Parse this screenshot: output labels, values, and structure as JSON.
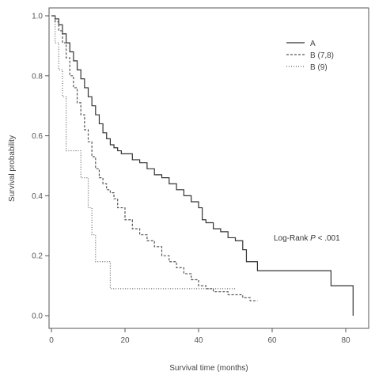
{
  "chart_data": {
    "type": "line",
    "xlabel": "Survival time (months)",
    "ylabel": "Survival probability",
    "xlim": [
      0,
      84
    ],
    "ylim": [
      0,
      1.05
    ],
    "x_ticks": [
      0,
      20,
      40,
      60,
      80
    ],
    "y_ticks": [
      "0.0",
      "0.2",
      "0.4",
      "0.6",
      "0.8",
      "1.0"
    ],
    "y_tick_values": [
      0,
      0.2,
      0.4,
      0.6,
      0.8,
      1.0
    ],
    "legend_position": "top-right",
    "annotation": {
      "prefix": "Log-Rank ",
      "italic": "P",
      "suffix": " < .001"
    },
    "series": [
      {
        "name": "A",
        "style": "solid",
        "color": "#333333",
        "x": [
          0,
          1,
          2,
          3,
          4,
          5,
          6,
          7,
          8,
          9,
          10,
          11,
          12,
          13,
          14,
          15,
          16,
          17,
          18,
          19,
          20,
          22,
          24,
          26,
          28,
          30,
          32,
          34,
          36,
          38,
          40,
          41,
          42,
          44,
          46,
          48,
          50,
          52,
          53,
          56,
          60,
          76,
          82
        ],
        "y": [
          1.0,
          0.99,
          0.97,
          0.94,
          0.91,
          0.88,
          0.85,
          0.82,
          0.79,
          0.76,
          0.73,
          0.7,
          0.67,
          0.64,
          0.61,
          0.59,
          0.57,
          0.56,
          0.55,
          0.54,
          0.54,
          0.52,
          0.51,
          0.49,
          0.47,
          0.46,
          0.44,
          0.42,
          0.4,
          0.38,
          0.36,
          0.32,
          0.31,
          0.29,
          0.28,
          0.26,
          0.25,
          0.22,
          0.18,
          0.15,
          0.15,
          0.1,
          0.0
        ]
      },
      {
        "name": "B (7,8)",
        "style": "dashed",
        "color": "#555555",
        "x": [
          0,
          1,
          2,
          3,
          4,
          5,
          6,
          7,
          8,
          9,
          10,
          11,
          12,
          13,
          14,
          15,
          16,
          17,
          18,
          20,
          22,
          24,
          26,
          28,
          30,
          32,
          34,
          36,
          38,
          40,
          42,
          44,
          46,
          48,
          50,
          52,
          54,
          56
        ],
        "y": [
          1.0,
          0.98,
          0.95,
          0.91,
          0.86,
          0.8,
          0.76,
          0.71,
          0.67,
          0.62,
          0.58,
          0.53,
          0.49,
          0.46,
          0.44,
          0.42,
          0.41,
          0.39,
          0.36,
          0.32,
          0.29,
          0.27,
          0.25,
          0.23,
          0.2,
          0.18,
          0.16,
          0.14,
          0.12,
          0.1,
          0.09,
          0.08,
          0.08,
          0.07,
          0.07,
          0.06,
          0.05,
          0.05
        ]
      },
      {
        "name": "B (9)",
        "style": "dotted",
        "color": "#666666",
        "x": [
          0,
          1,
          2,
          3,
          4,
          6,
          8,
          10,
          11,
          12,
          14,
          16,
          18,
          30,
          40,
          50
        ],
        "y": [
          1.0,
          0.91,
          0.82,
          0.73,
          0.55,
          0.55,
          0.46,
          0.36,
          0.27,
          0.18,
          0.18,
          0.09,
          0.09,
          0.09,
          0.09,
          0.09
        ]
      }
    ]
  }
}
